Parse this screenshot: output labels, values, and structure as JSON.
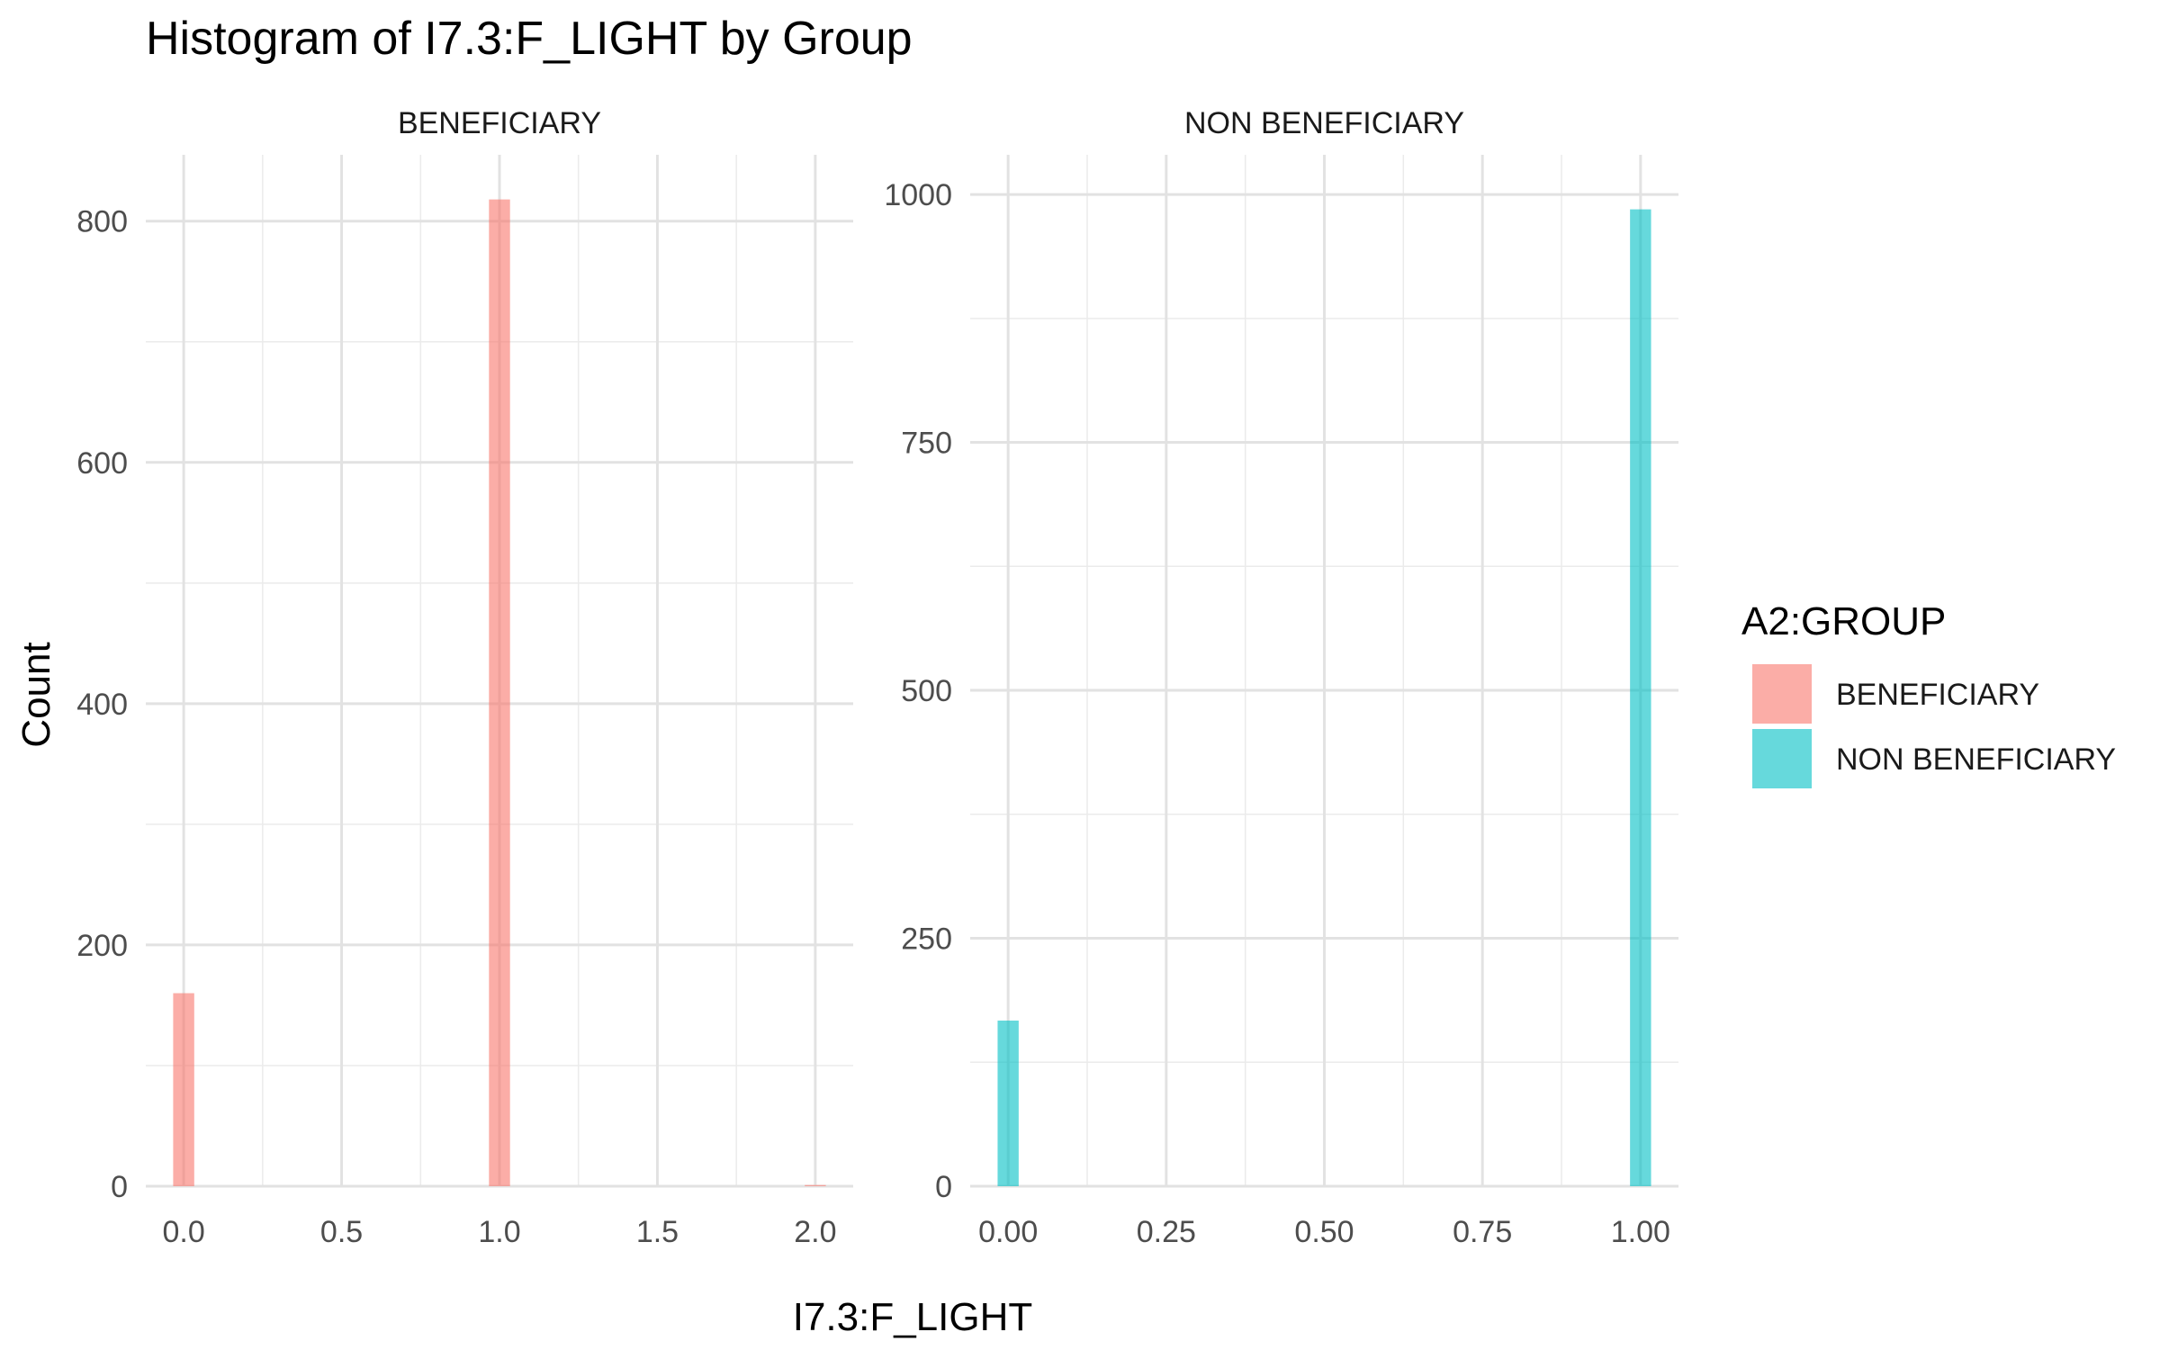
{
  "chart_data": {
    "type": "bar",
    "title": "Histogram of I7.3:F_LIGHT by Group",
    "xlabel": "I7.3:F_LIGHT",
    "ylabel": "Count",
    "legend": {
      "title": "A2:GROUP",
      "position": "right",
      "entries": [
        {
          "label": "BENEFICIARY",
          "color": "#F8766D"
        },
        {
          "label": "NON BENEFICIARY",
          "color": "#00BFC4"
        }
      ]
    },
    "grid": true,
    "panels": [
      {
        "strip": "BENEFICIARY",
        "color": "#F8766D",
        "xlim": [
          -0.12,
          2.12
        ],
        "ylim": [
          0,
          855
        ],
        "x_ticks": [
          0.0,
          0.5,
          1.0,
          1.5,
          2.0
        ],
        "x_tick_labels": [
          "0.0",
          "0.5",
          "1.0",
          "1.5",
          "2.0"
        ],
        "x_minor": [
          0.25,
          0.75,
          1.25,
          1.75
        ],
        "y_ticks": [
          0,
          200,
          400,
          600,
          800
        ],
        "y_tick_labels": [
          "0",
          "200",
          "400",
          "600",
          "800"
        ],
        "y_minor": [
          100,
          300,
          500,
          700
        ],
        "bin_width": 0.0667,
        "bars": [
          {
            "x": 0.0,
            "count": 160
          },
          {
            "x": 1.0,
            "count": 818
          },
          {
            "x": 2.0,
            "count": 1
          }
        ]
      },
      {
        "strip": "NON BENEFICIARY",
        "color": "#00BFC4",
        "xlim": [
          -0.06,
          1.06
        ],
        "ylim": [
          0,
          1040
        ],
        "x_ticks": [
          0.0,
          0.25,
          0.5,
          0.75,
          1.0
        ],
        "x_tick_labels": [
          "0.00",
          "0.25",
          "0.50",
          "0.75",
          "1.00"
        ],
        "x_minor": [
          0.125,
          0.375,
          0.625,
          0.875
        ],
        "y_ticks": [
          0,
          250,
          500,
          750,
          1000
        ],
        "y_tick_labels": [
          "0",
          "250",
          "500",
          "750",
          "1000"
        ],
        "y_minor": [
          125,
          375,
          625,
          875
        ],
        "bin_width": 0.0333,
        "bars": [
          {
            "x": 0.0,
            "count": 167
          },
          {
            "x": 1.0,
            "count": 985
          }
        ]
      }
    ]
  }
}
